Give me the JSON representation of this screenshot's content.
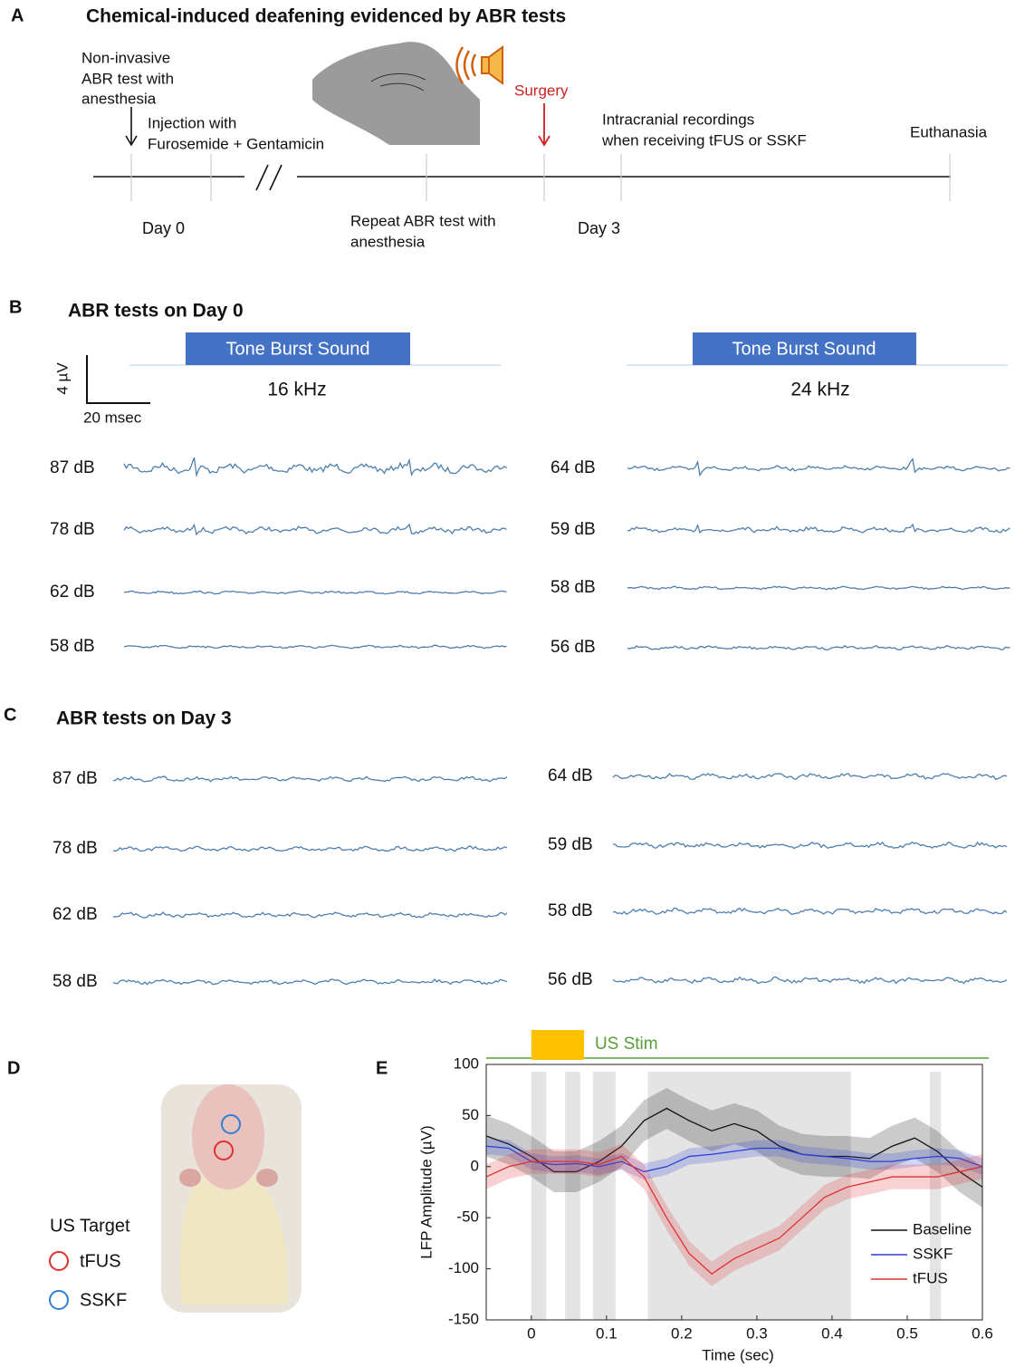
{
  "panel_a": {
    "letter": "A",
    "title": "Chemical-induced deafening evidenced by ABR tests",
    "step_1": [
      "Non-invasive",
      "ABR test with",
      "anesthesia"
    ],
    "step_2": [
      "Injection with",
      "Furosemide + Gentamicin"
    ],
    "surgery": "Surgery",
    "step_3": [
      "Intracranial recordings",
      "when receiving tFUS or SSKF"
    ],
    "step_4": "Euthanasia",
    "day_0": "Day 0",
    "repeat": [
      "Repeat ABR test with",
      "anesthesia"
    ],
    "day_3": "Day 3"
  },
  "panel_b": {
    "letter": "B",
    "title": "ABR tests on Day 0",
    "stimulus": "Tone Burst Sound",
    "scale_y": "4 µV",
    "scale_x": "20 msec",
    "columns": [
      {
        "frequency": "16 kHz",
        "levels": [
          "87 dB",
          "78 dB",
          "62 dB",
          "58 dB"
        ]
      },
      {
        "frequency": "24 kHz",
        "levels": [
          "64 dB",
          "59 dB",
          "58 dB",
          "56 dB"
        ]
      }
    ]
  },
  "panel_c": {
    "letter": "C",
    "title": "ABR tests on Day 3",
    "columns": [
      {
        "levels": [
          "87 dB",
          "78 dB",
          "62 dB",
          "58 dB"
        ]
      },
      {
        "levels": [
          "64 dB",
          "59 dB",
          "58 dB",
          "56 dB"
        ]
      }
    ]
  },
  "panel_d": {
    "letter": "D",
    "legend_title": "US Target",
    "legend": [
      "tFUS",
      "SSKF"
    ]
  },
  "chart_data": {
    "type": "line",
    "panel": "E",
    "xlabel": "Time (sec)",
    "ylabel": "LFP Amplitude (µV)",
    "x": [
      -0.06,
      -0.03,
      0,
      0.03,
      0.06,
      0.09,
      0.12,
      0.15,
      0.18,
      0.21,
      0.24,
      0.27,
      0.3,
      0.33,
      0.36,
      0.39,
      0.42,
      0.45,
      0.48,
      0.51,
      0.54,
      0.57,
      0.6
    ],
    "xlim": [
      -0.06,
      0.6
    ],
    "xticks": [
      0,
      0.1,
      0.2,
      0.3,
      0.4,
      0.5,
      0.6
    ],
    "ylim": [
      -150,
      100
    ],
    "yticks": [
      -150,
      -100,
      -50,
      0,
      50,
      100
    ],
    "stimulus": {
      "label": "US Stim",
      "start": 0,
      "end": 0.07,
      "color": "#ffc000"
    },
    "shaded_regions": [
      [
        0,
        0.02
      ],
      [
        0.045,
        0.065
      ],
      [
        0.082,
        0.112
      ],
      [
        0.155,
        0.425
      ],
      [
        0.53,
        0.545
      ]
    ],
    "series": [
      {
        "name": "Baseline",
        "color": "#111111",
        "error": 20,
        "values": [
          30,
          22,
          10,
          -5,
          -5,
          5,
          20,
          45,
          57,
          45,
          35,
          42,
          35,
          20,
          12,
          10,
          10,
          8,
          20,
          28,
          15,
          -5,
          -20
        ]
      },
      {
        "name": "SSKF",
        "color": "#2b3fd6",
        "error": 8,
        "values": [
          20,
          18,
          5,
          2,
          3,
          0,
          5,
          -5,
          0,
          10,
          12,
          15,
          18,
          18,
          12,
          10,
          8,
          5,
          5,
          8,
          10,
          8,
          0
        ]
      },
      {
        "name": "tFUS",
        "color": "#e03030",
        "error": 12,
        "values": [
          -10,
          0,
          5,
          5,
          5,
          2,
          10,
          -10,
          -50,
          -85,
          -105,
          -90,
          -80,
          -70,
          -50,
          -30,
          -20,
          -15,
          -10,
          -10,
          -10,
          -5,
          0
        ]
      }
    ]
  }
}
